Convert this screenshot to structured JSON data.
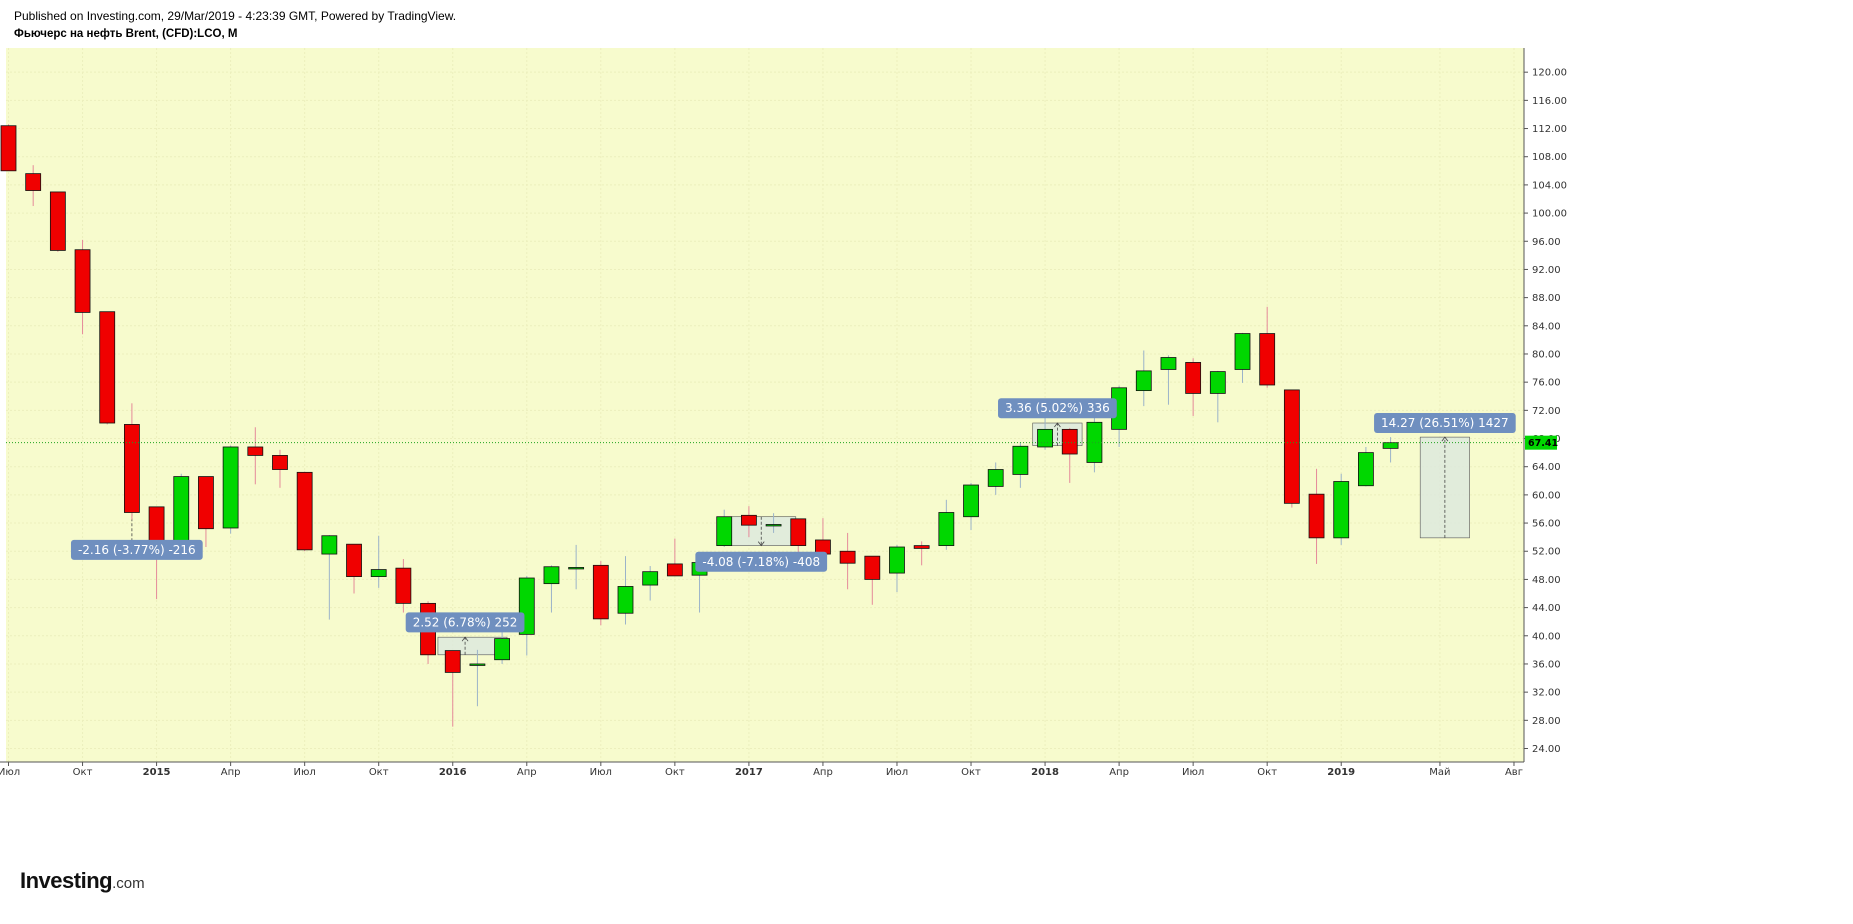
{
  "header": {
    "published": "Published on Investing.com, 29/Mar/2019 - 4:23:39 GMT, Powered by TradingView.",
    "symbol": "Фьючерс на нефть Brent, (CFD):LCO, M"
  },
  "logo": {
    "main": "Investing",
    "suffix": ".com"
  },
  "colors": {
    "background": "#f7fbcd",
    "up": "#00d700",
    "down": "#f00000",
    "wick_up": "#9bb3c9",
    "wick_down": "#e58a9a",
    "last_price_line": "#1fa31f",
    "annotation_bg": "#6f8fbf",
    "range_fill": "#dde9dd"
  },
  "chart_data": {
    "type": "candlestick",
    "interval": "M",
    "last_price": "67.41",
    "y_ticks": [
      "24.00",
      "28.00",
      "32.00",
      "36.00",
      "40.00",
      "44.00",
      "48.00",
      "52.00",
      "56.00",
      "60.00",
      "64.00",
      "68.00",
      "72.00",
      "76.00",
      "80.00",
      "84.00",
      "88.00",
      "92.00",
      "96.00",
      "100.00",
      "104.00",
      "108.00",
      "112.00",
      "116.00",
      "120.00"
    ],
    "x_ticks": [
      {
        "label": "Июл",
        "index": 0,
        "bold": false
      },
      {
        "label": "Окт",
        "index": 3,
        "bold": false
      },
      {
        "label": "2015",
        "index": 6,
        "bold": true
      },
      {
        "label": "Апр",
        "index": 9,
        "bold": false
      },
      {
        "label": "Июл",
        "index": 12,
        "bold": false
      },
      {
        "label": "Окт",
        "index": 15,
        "bold": false
      },
      {
        "label": "2016",
        "index": 18,
        "bold": true
      },
      {
        "label": "Апр",
        "index": 21,
        "bold": false
      },
      {
        "label": "Июл",
        "index": 24,
        "bold": false
      },
      {
        "label": "Окт",
        "index": 27,
        "bold": false
      },
      {
        "label": "2017",
        "index": 30,
        "bold": true
      },
      {
        "label": "Апр",
        "index": 33,
        "bold": false
      },
      {
        "label": "Июл",
        "index": 36,
        "bold": false
      },
      {
        "label": "Окт",
        "index": 39,
        "bold": false
      },
      {
        "label": "2018",
        "index": 42,
        "bold": true
      },
      {
        "label": "Апр",
        "index": 45,
        "bold": false
      },
      {
        "label": "Июл",
        "index": 48,
        "bold": false
      },
      {
        "label": "Окт",
        "index": 51,
        "bold": false
      },
      {
        "label": "2019",
        "index": 54,
        "bold": true
      },
      {
        "label": "Май",
        "index": 58,
        "bold": false
      },
      {
        "label": "Авг",
        "index": 61,
        "bold": false
      }
    ],
    "candles": [
      {
        "t": "2014-07",
        "o": 112.4,
        "h": 112.6,
        "l": 106.0,
        "c": 106.0
      },
      {
        "t": "2014-08",
        "o": 105.6,
        "h": 106.8,
        "l": 101.0,
        "c": 103.2
      },
      {
        "t": "2014-09",
        "o": 103.0,
        "h": 103.0,
        "l": 94.5,
        "c": 94.7
      },
      {
        "t": "2014-10",
        "o": 94.8,
        "h": 96.2,
        "l": 82.8,
        "c": 85.9
      },
      {
        "t": "2014-11",
        "o": 86.0,
        "h": 86.0,
        "l": 70.0,
        "c": 70.2
      },
      {
        "t": "2014-12",
        "o": 70.0,
        "h": 73.0,
        "l": 56.5,
        "c": 57.5
      },
      {
        "t": "2015-01",
        "o": 58.3,
        "h": 58.3,
        "l": 45.2,
        "c": 53.0
      },
      {
        "t": "2015-02",
        "o": 52.8,
        "h": 63.0,
        "l": 52.0,
        "c": 62.6
      },
      {
        "t": "2015-03",
        "o": 62.6,
        "h": 62.6,
        "l": 52.6,
        "c": 55.2
      },
      {
        "t": "2015-04",
        "o": 55.3,
        "h": 67.0,
        "l": 54.5,
        "c": 66.8
      },
      {
        "t": "2015-05",
        "o": 66.8,
        "h": 69.6,
        "l": 61.5,
        "c": 65.6
      },
      {
        "t": "2015-06",
        "o": 65.6,
        "h": 66.4,
        "l": 61.0,
        "c": 63.6
      },
      {
        "t": "2015-07",
        "o": 63.2,
        "h": 63.3,
        "l": 52.0,
        "c": 52.2
      },
      {
        "t": "2015-08",
        "o": 51.6,
        "h": 54.3,
        "l": 42.3,
        "c": 54.2
      },
      {
        "t": "2015-09",
        "o": 53.0,
        "h": 53.0,
        "l": 46.0,
        "c": 48.4
      },
      {
        "t": "2015-10",
        "o": 48.4,
        "h": 54.2,
        "l": 46.8,
        "c": 49.4
      },
      {
        "t": "2015-11",
        "o": 49.6,
        "h": 50.9,
        "l": 43.3,
        "c": 44.6
      },
      {
        "t": "2015-12",
        "o": 44.6,
        "h": 44.9,
        "l": 36.0,
        "c": 37.3
      },
      {
        "t": "2016-01",
        "o": 37.9,
        "h": 37.9,
        "l": 27.1,
        "c": 34.8
      },
      {
        "t": "2016-02",
        "o": 36.0,
        "h": 38.0,
        "l": 30.0,
        "c": 36.0
      },
      {
        "t": "2016-03",
        "o": 36.6,
        "h": 41.0,
        "l": 36.0,
        "c": 39.6
      },
      {
        "t": "2016-04",
        "o": 40.2,
        "h": 48.5,
        "l": 37.2,
        "c": 48.2
      },
      {
        "t": "2016-05",
        "o": 47.4,
        "h": 50.0,
        "l": 43.3,
        "c": 49.8
      },
      {
        "t": "2016-06",
        "o": 49.7,
        "h": 52.9,
        "l": 46.6,
        "c": 49.7
      },
      {
        "t": "2016-07",
        "o": 50.0,
        "h": 50.6,
        "l": 41.5,
        "c": 42.4
      },
      {
        "t": "2016-08",
        "o": 43.2,
        "h": 51.3,
        "l": 41.6,
        "c": 47.0
      },
      {
        "t": "2016-09",
        "o": 47.2,
        "h": 49.9,
        "l": 45.0,
        "c": 49.1
      },
      {
        "t": "2016-10",
        "o": 50.2,
        "h": 53.8,
        "l": 48.5,
        "c": 48.5
      },
      {
        "t": "2016-11",
        "o": 48.6,
        "h": 50.6,
        "l": 43.3,
        "c": 50.4
      },
      {
        "t": "2016-12",
        "o": 52.8,
        "h": 57.9,
        "l": 52.6,
        "c": 56.9
      },
      {
        "t": "2017-01",
        "o": 57.1,
        "h": 58.4,
        "l": 54.0,
        "c": 55.7
      },
      {
        "t": "2017-02",
        "o": 55.8,
        "h": 57.4,
        "l": 54.6,
        "c": 55.8
      },
      {
        "t": "2017-03",
        "o": 56.6,
        "h": 56.6,
        "l": 49.8,
        "c": 52.8
      },
      {
        "t": "2017-04",
        "o": 53.6,
        "h": 56.7,
        "l": 50.6,
        "c": 51.6
      },
      {
        "t": "2017-05",
        "o": 52.0,
        "h": 54.6,
        "l": 46.6,
        "c": 50.3
      },
      {
        "t": "2017-06",
        "o": 51.3,
        "h": 51.3,
        "l": 44.4,
        "c": 48.0
      },
      {
        "t": "2017-07",
        "o": 48.9,
        "h": 52.9,
        "l": 46.2,
        "c": 52.6
      },
      {
        "t": "2017-08",
        "o": 52.8,
        "h": 53.4,
        "l": 50.0,
        "c": 52.4
      },
      {
        "t": "2017-09",
        "o": 52.8,
        "h": 59.3,
        "l": 52.2,
        "c": 57.5
      },
      {
        "t": "2017-10",
        "o": 56.9,
        "h": 61.7,
        "l": 55.0,
        "c": 61.4
      },
      {
        "t": "2017-11",
        "o": 61.2,
        "h": 64.6,
        "l": 60.0,
        "c": 63.6
      },
      {
        "t": "2017-12",
        "o": 62.9,
        "h": 67.5,
        "l": 61.0,
        "c": 66.9
      },
      {
        "t": "2018-01",
        "o": 66.8,
        "h": 71.3,
        "l": 66.4,
        "c": 69.3
      },
      {
        "t": "2018-02",
        "o": 69.3,
        "h": 69.5,
        "l": 61.7,
        "c": 65.8
      },
      {
        "t": "2018-03",
        "o": 64.6,
        "h": 71.2,
        "l": 63.2,
        "c": 70.3
      },
      {
        "t": "2018-04",
        "o": 69.3,
        "h": 75.5,
        "l": 66.8,
        "c": 75.2
      },
      {
        "t": "2018-05",
        "o": 74.8,
        "h": 80.5,
        "l": 72.6,
        "c": 77.6
      },
      {
        "t": "2018-06",
        "o": 77.8,
        "h": 79.8,
        "l": 72.8,
        "c": 79.5
      },
      {
        "t": "2018-07",
        "o": 78.8,
        "h": 79.4,
        "l": 71.2,
        "c": 74.4
      },
      {
        "t": "2018-08",
        "o": 74.4,
        "h": 77.6,
        "l": 70.3,
        "c": 77.5
      },
      {
        "t": "2018-09",
        "o": 77.8,
        "h": 83.0,
        "l": 75.9,
        "c": 82.9
      },
      {
        "t": "2018-10",
        "o": 82.9,
        "h": 86.7,
        "l": 75.2,
        "c": 75.6
      },
      {
        "t": "2018-11",
        "o": 74.9,
        "h": 74.9,
        "l": 58.2,
        "c": 58.8
      },
      {
        "t": "2018-12",
        "o": 60.1,
        "h": 63.7,
        "l": 50.2,
        "c": 53.9
      },
      {
        "t": "2019-01",
        "o": 53.9,
        "h": 63.0,
        "l": 52.9,
        "c": 61.9
      },
      {
        "t": "2019-02",
        "o": 61.3,
        "h": 66.8,
        "l": 61.2,
        "c": 66.0
      },
      {
        "t": "2019-03",
        "o": 66.6,
        "h": 68.2,
        "l": 64.6,
        "c": 67.41
      }
    ],
    "annotations": [
      {
        "label": "-2.16 (-3.77%) -216"
      },
      {
        "label": "2.52 (6.78%) 252"
      },
      {
        "label": "-4.08 (-7.18%) -408"
      },
      {
        "label": "3.36 (5.02%) 336"
      },
      {
        "label": "14.27 (26.51%) 1427"
      }
    ]
  }
}
